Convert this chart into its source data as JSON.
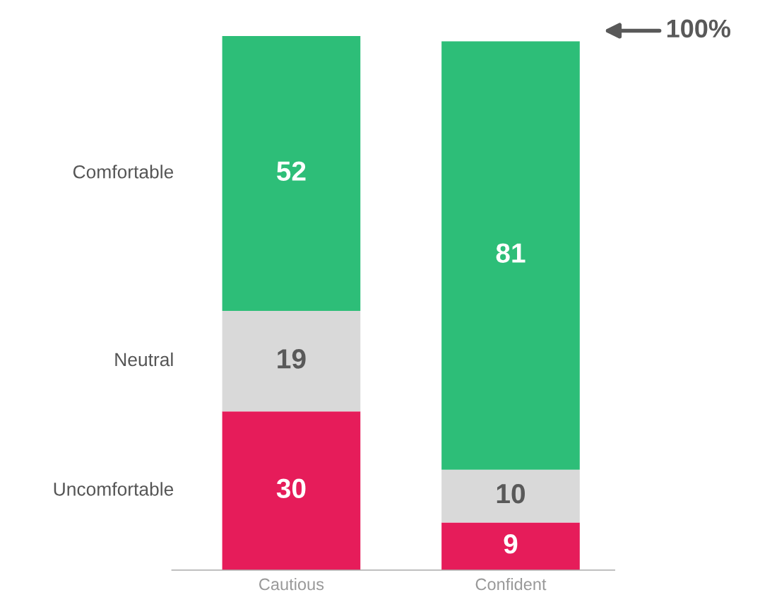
{
  "chart_data": {
    "type": "bar",
    "stacked": true,
    "data_labels": true,
    "legend": false,
    "grid": false,
    "categories": [
      "Cautious",
      "Confident"
    ],
    "series": [
      {
        "name": "Uncomfortable",
        "color": "#e61c5a",
        "values": [
          30,
          9
        ]
      },
      {
        "name": "Neutral",
        "color": "#d9d9d9",
        "values": [
          19,
          10
        ]
      },
      {
        "name": "Comfortable",
        "color": "#2dbe78",
        "values": [
          52,
          81
        ]
      }
    ],
    "annotations": [
      "100%"
    ]
  }
}
